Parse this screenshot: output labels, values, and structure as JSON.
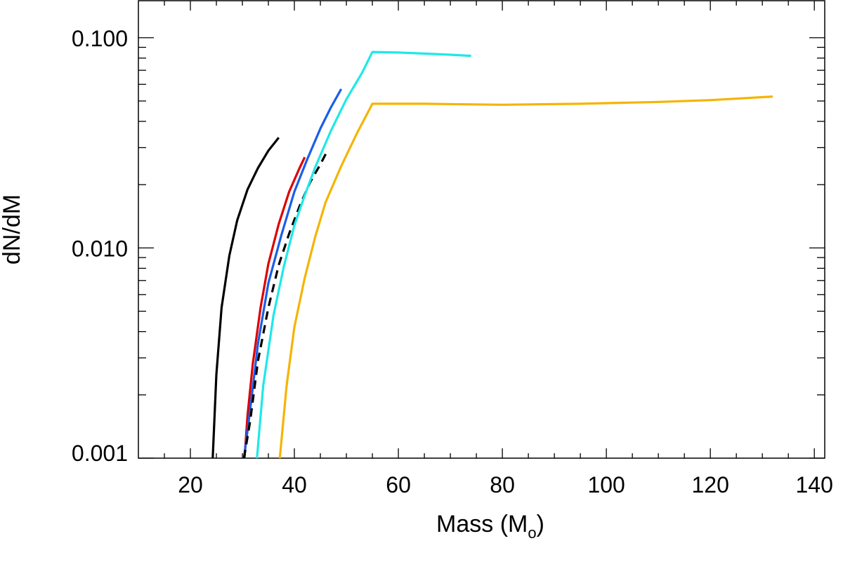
{
  "chart_data": {
    "type": "line",
    "title": "",
    "xlabel": "Mass (M",
    "xlabel_subscript": "o",
    "xlabel_close": ")",
    "ylabel": "dN/dM",
    "xlim": [
      10,
      142
    ],
    "ylim": [
      0.001,
      0.15
    ],
    "y_scale": "log",
    "grid": false,
    "x_ticks": [
      20,
      40,
      60,
      80,
      100,
      120,
      140
    ],
    "x_tick_labels": [
      "20",
      "40",
      "60",
      "80",
      "100",
      "120",
      "140"
    ],
    "y_ticks": [
      0.001,
      0.01,
      0.1
    ],
    "y_tick_labels": [
      "0.001",
      "0.010",
      "0.100"
    ],
    "series": [
      {
        "color": "#000000",
        "dash": false,
        "points": [
          [
            24.3,
            0.001
          ],
          [
            25.0,
            0.0025
          ],
          [
            26.0,
            0.0052
          ],
          [
            27.5,
            0.0092
          ],
          [
            29.0,
            0.0135
          ],
          [
            31.0,
            0.019
          ],
          [
            33.0,
            0.024
          ],
          [
            35.0,
            0.029
          ],
          [
            37.0,
            0.0335
          ]
        ]
      },
      {
        "color": "#dd0000",
        "dash": false,
        "points": [
          [
            30.4,
            0.001
          ],
          [
            31.0,
            0.0016
          ],
          [
            32.0,
            0.0028
          ],
          [
            33.5,
            0.0052
          ],
          [
            35.0,
            0.0084
          ],
          [
            37.0,
            0.013
          ],
          [
            39.0,
            0.0185
          ],
          [
            41.0,
            0.024
          ],
          [
            42.0,
            0.027
          ]
        ]
      },
      {
        "color": "#1a5de8",
        "dash": false,
        "points": [
          [
            30.3,
            0.001
          ],
          [
            31.5,
            0.0017
          ],
          [
            33.0,
            0.0035
          ],
          [
            35.0,
            0.0068
          ],
          [
            37.5,
            0.0115
          ],
          [
            40.0,
            0.0185
          ],
          [
            42.5,
            0.0265
          ],
          [
            45.0,
            0.037
          ],
          [
            47.0,
            0.0465
          ],
          [
            49.0,
            0.057
          ]
        ]
      },
      {
        "color": "#000000",
        "dash": true,
        "points": [
          [
            30.3,
            0.001
          ],
          [
            31.5,
            0.0015
          ],
          [
            33.0,
            0.0029
          ],
          [
            35.0,
            0.0052
          ],
          [
            37.0,
            0.0083
          ],
          [
            39.0,
            0.0117
          ],
          [
            41.0,
            0.0158
          ],
          [
            43.0,
            0.0205
          ],
          [
            45.0,
            0.025
          ],
          [
            46.5,
            0.0295
          ]
        ]
      },
      {
        "color": "#1ee8e8",
        "dash": false,
        "points": [
          [
            32.8,
            0.001
          ],
          [
            34.0,
            0.0022
          ],
          [
            36.0,
            0.0048
          ],
          [
            38.0,
            0.0082
          ],
          [
            40.0,
            0.0128
          ],
          [
            42.0,
            0.0178
          ],
          [
            44.0,
            0.0242
          ],
          [
            47.0,
            0.036
          ],
          [
            50.0,
            0.051
          ],
          [
            53.0,
            0.068
          ],
          [
            55.0,
            0.0855
          ],
          [
            60.0,
            0.085
          ],
          [
            65.0,
            0.084
          ],
          [
            70.0,
            0.083
          ],
          [
            74.0,
            0.082
          ]
        ]
      },
      {
        "color": "#f5b400",
        "dash": false,
        "points": [
          [
            37.2,
            0.001
          ],
          [
            38.5,
            0.0022
          ],
          [
            40.0,
            0.0042
          ],
          [
            42.0,
            0.0072
          ],
          [
            44.0,
            0.0113
          ],
          [
            46.0,
            0.0165
          ],
          [
            49.0,
            0.0245
          ],
          [
            52.0,
            0.035
          ],
          [
            55.0,
            0.0485
          ],
          [
            65.0,
            0.0485
          ],
          [
            80.0,
            0.048
          ],
          [
            95.0,
            0.0485
          ],
          [
            110.0,
            0.0495
          ],
          [
            120.0,
            0.0505
          ],
          [
            132.0,
            0.0525
          ]
        ]
      }
    ]
  }
}
